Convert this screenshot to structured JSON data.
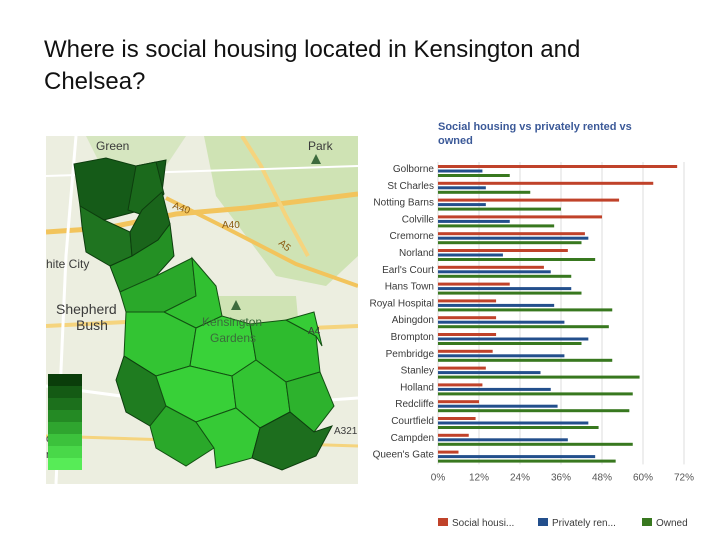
{
  "slide": {
    "title": "Where is social housing located in Kensington and Chelsea?"
  },
  "map": {
    "labels": [
      "Green",
      "Park",
      "A40",
      "A40",
      "A5",
      "hite City",
      "Shepherd",
      "Bush",
      "Kensington",
      "Gardens",
      "A4",
      "A321",
      "on",
      "ntre"
    ],
    "legend_colors": [
      "#0a3d0a",
      "#145a14",
      "#1c701c",
      "#248a24",
      "#2fa52f",
      "#3cc23c",
      "#49d849",
      "#57ec57"
    ]
  },
  "chart_data": {
    "type": "bar",
    "orientation": "horizontal",
    "title": "Social housing vs privately rented vs owned",
    "categories": [
      "Golborne",
      "St Charles",
      "Notting Barns",
      "Colville",
      "Cremorne",
      "Norland",
      "Earl's Court",
      "Hans Town",
      "Royal Hospital",
      "Abingdon",
      "Brompton",
      "Pembridge",
      "Stanley",
      "Holland",
      "Redcliffe",
      "Courtfield",
      "Campden",
      "Queen's Gate"
    ],
    "series": [
      {
        "name": "Social housi...",
        "color": "#c0422a",
        "values": [
          70,
          63,
          53,
          48,
          43,
          38,
          31,
          21,
          17,
          17,
          17,
          16,
          14,
          13,
          12,
          11,
          9,
          6
        ]
      },
      {
        "name": "Privately ren...",
        "color": "#234f8c",
        "values": [
          13,
          14,
          14,
          21,
          44,
          19,
          33,
          39,
          34,
          37,
          44,
          37,
          30,
          33,
          35,
          44,
          38,
          46
        ]
      },
      {
        "name": "Owned",
        "color": "#38781f",
        "values": [
          21,
          27,
          36,
          34,
          42,
          46,
          39,
          42,
          51,
          50,
          42,
          51,
          59,
          57,
          56,
          47,
          57,
          52
        ]
      }
    ],
    "x_ticks": [
      "0%",
      "12%",
      "24%",
      "36%",
      "48%",
      "60%",
      "72%"
    ],
    "xlim": [
      0,
      72
    ],
    "grid": true,
    "legend_position": "bottom"
  }
}
